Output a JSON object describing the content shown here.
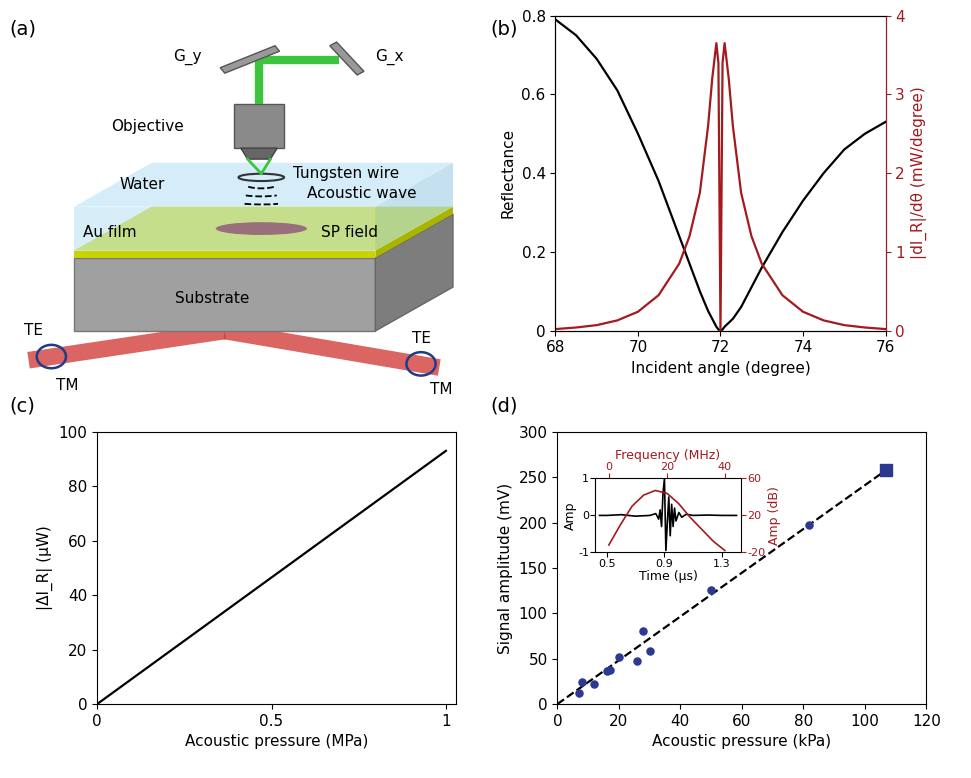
{
  "diagram": {
    "title": "(a)",
    "labels": {
      "objective": "Objective",
      "water": "Water",
      "tungsten_wire": "Tungsten wire",
      "acoustic_wave": "Acoustic wave",
      "au_film": "Au film",
      "sp_field": "SP field",
      "substrate": "Substrate",
      "te": "TE",
      "tm": "TM",
      "gy": "G_y",
      "gx": "G_x"
    }
  },
  "chart_data": [
    {
      "type": "line",
      "title": "(b)",
      "x_label": "Incident angle (degree)",
      "y_label": "Reflectance",
      "y2_label": "|dI_R|/dθ (mW/degree)",
      "x": [
        68,
        68.5,
        69,
        69.5,
        70,
        70.5,
        71,
        71.25,
        71.5,
        71.7,
        71.8,
        71.9,
        71.95,
        72,
        72.05,
        72.1,
        72.2,
        72.3,
        72.5,
        72.75,
        73,
        73.5,
        74,
        74.5,
        75,
        75.5,
        76
      ],
      "xlim": [
        68,
        76
      ],
      "xticks": [
        68,
        70,
        72,
        74,
        76
      ],
      "ylim": [
        0,
        0.8
      ],
      "yticks": [
        0,
        0.2,
        0.4,
        0.6,
        0.8
      ],
      "y2lim": [
        0,
        4
      ],
      "y2ticks": [
        0,
        1,
        2,
        3,
        4
      ],
      "series": [
        {
          "color": "#000000",
          "values": [
            0.79,
            0.75,
            0.69,
            0.61,
            0.5,
            0.38,
            0.24,
            0.17,
            0.1,
            0.05,
            0.03,
            0.01,
            0.003,
            0.0,
            0.003,
            0.01,
            0.02,
            0.03,
            0.06,
            0.11,
            0.16,
            0.25,
            0.33,
            0.4,
            0.46,
            0.5,
            0.53
          ]
        },
        {
          "color": "#a31a1f",
          "axis": "y2",
          "values": [
            0.02,
            0.04,
            0.07,
            0.13,
            0.24,
            0.45,
            0.85,
            1.2,
            1.75,
            2.6,
            3.2,
            3.65,
            3.4,
            0.0,
            3.4,
            3.65,
            3.2,
            2.6,
            1.75,
            1.2,
            0.85,
            0.45,
            0.24,
            0.13,
            0.07,
            0.04,
            0.02
          ]
        }
      ]
    },
    {
      "type": "line",
      "title": "(c)",
      "x_label": "Acoustic pressure (MPa)",
      "y_label": "|ΔI_R| (μW)",
      "x": [
        0,
        1
      ],
      "values": [
        0,
        93
      ],
      "color": "#000000",
      "xlim": [
        0,
        1.03
      ],
      "xticks": [
        0,
        0.5,
        1
      ],
      "ylim": [
        0,
        100
      ],
      "yticks": [
        0,
        20,
        40,
        60,
        80,
        100
      ]
    },
    {
      "type": "scatter",
      "title": "(d)",
      "x_label": "Acoustic pressure (kPa)",
      "y_label": "Signal amplitude (mV)",
      "xlim": [
        0,
        120
      ],
      "xticks": [
        0,
        20,
        40,
        60,
        80,
        100,
        120
      ],
      "ylim": [
        0,
        300
      ],
      "yticks": [
        0,
        50,
        100,
        150,
        200,
        250,
        300
      ],
      "series": [
        {
          "type": "scatter",
          "color": "#2b3990",
          "marker": "circle",
          "x": [
            7,
            8,
            12,
            16,
            17,
            20,
            26,
            28,
            30,
            50,
            82
          ],
          "values": [
            12,
            24,
            22,
            36,
            38,
            52,
            48,
            80,
            58,
            126,
            197
          ]
        },
        {
          "type": "scatter",
          "color": "#2b3990",
          "marker": "square",
          "x": [
            107
          ],
          "values": [
            258
          ]
        },
        {
          "type": "line",
          "color": "#000000",
          "line_style": "dashed",
          "x": [
            0,
            107
          ],
          "values": [
            0,
            258
          ]
        }
      ]
    },
    {
      "type": "line",
      "x_label": "Time (μs)",
      "y_label": "Amp",
      "x2_label": "Frequency (MHz)",
      "y2_label": "Amp (dB)",
      "xlim": [
        0.42,
        1.43
      ],
      "xticks": [
        0.5,
        0.9,
        1.3
      ],
      "ylim": [
        -1,
        1
      ],
      "yticks": [
        -1,
        0,
        1
      ],
      "x2lim": [
        -4.7,
        45.5
      ],
      "x2ticks": [
        0,
        20,
        40
      ],
      "y2lim": [
        -20,
        60
      ],
      "y2ticks": [
        -20,
        20,
        60
      ],
      "series": [
        {
          "color": "#000000",
          "x": [
            0.45,
            0.5,
            0.6,
            0.7,
            0.8,
            0.84,
            0.86,
            0.87,
            0.88,
            0.89,
            0.9,
            0.91,
            0.92,
            0.93,
            0.94,
            0.95,
            0.96,
            0.97,
            0.98,
            1.0,
            1.02,
            1.05,
            1.1,
            1.2,
            1.3,
            1.4
          ],
          "values": [
            0,
            0,
            0.02,
            -0.02,
            0,
            0.05,
            -0.1,
            0.15,
            -0.3,
            0.6,
            1.0,
            -0.95,
            -0.2,
            0.5,
            -0.55,
            0.3,
            -0.3,
            0.2,
            -0.15,
            0.08,
            -0.05,
            0.03,
            0.0,
            0.01,
            0,
            0
          ]
        },
        {
          "color": "#a31a1f",
          "axis": "y2",
          "x": [
            0,
            4,
            8,
            12,
            16,
            20,
            24,
            28,
            32,
            36,
            40
          ],
          "values": [
            -12,
            10,
            30,
            42,
            47,
            44,
            33,
            18,
            5,
            -8,
            -18
          ]
        }
      ]
    }
  ]
}
